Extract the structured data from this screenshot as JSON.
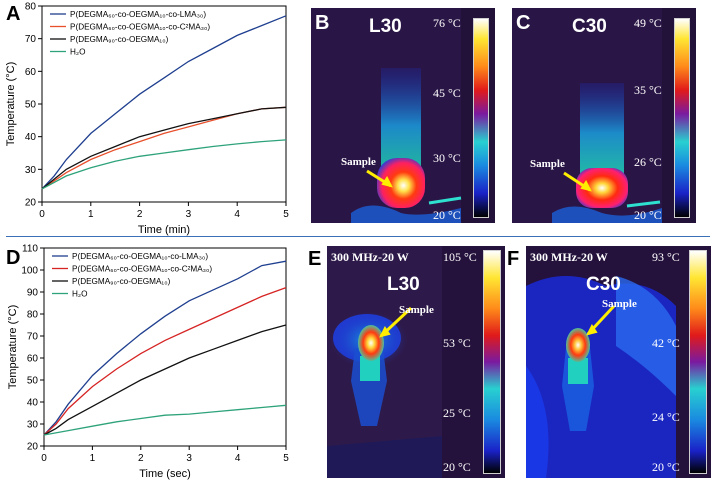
{
  "panels": {
    "A": "A",
    "B": "B",
    "C": "C",
    "D": "D",
    "E": "E",
    "F": "F"
  },
  "thermal": {
    "B": {
      "title": "L30",
      "sample": "Sample",
      "scale": [
        "76 °C",
        "45 °C",
        "30 °C",
        "20 °C"
      ]
    },
    "C": {
      "title": "C30",
      "sample": "Sample",
      "scale": [
        "49 °C",
        "35 °C",
        "26 °C",
        "20 °C"
      ]
    },
    "E": {
      "title": "L30",
      "header": "300 MHz-20 W",
      "sample": "Sample",
      "scale": [
        "105 °C",
        "53 °C",
        "25 °C",
        "20 °C"
      ]
    },
    "F": {
      "title": "C30",
      "header": "300 MHz-20 W",
      "sample": "Sample",
      "scale": [
        "93 °C",
        "42 °C",
        "24 °C",
        "20 °C"
      ]
    }
  },
  "chart_data": [
    {
      "id": "A",
      "type": "line",
      "xlabel": "Time (min)",
      "ylabel": "Temperature (°C)",
      "xlim": [
        0,
        5
      ],
      "ylim": [
        20,
        80
      ],
      "xticks": [
        0,
        1,
        2,
        3,
        4,
        5
      ],
      "yticks": [
        20,
        30,
        40,
        50,
        60,
        70,
        80
      ],
      "legend_position": "top-left",
      "series": [
        {
          "name": "P(DEGMA₆₀-co-OEGMA₁₀-co-LMA₃₀)",
          "color": "#1f3f8f",
          "x": [
            0,
            0.25,
            0.5,
            1,
            1.5,
            2,
            2.5,
            3,
            3.5,
            4,
            4.5,
            5
          ],
          "y": [
            24,
            28,
            33,
            41,
            47,
            53,
            58,
            63,
            67,
            71,
            74,
            77
          ]
        },
        {
          "name": "P(DEGMA₆₀-co-OEGMA₁₀-co-C²MA₃₀)",
          "color": "#e8502c",
          "x": [
            0,
            0.25,
            0.5,
            1,
            1.5,
            2,
            2.5,
            3,
            3.5,
            4,
            4.5,
            5
          ],
          "y": [
            24,
            26.5,
            29,
            33,
            36,
            38.5,
            41,
            43,
            45,
            47,
            48.5,
            49
          ]
        },
        {
          "name": "P(DEGMA₉₀-co-OEGMA₁₀)",
          "color": "#111111",
          "x": [
            0,
            0.25,
            0.5,
            1,
            1.5,
            2,
            2.5,
            3,
            3.5,
            4,
            4.5,
            5
          ],
          "y": [
            24,
            27,
            30,
            34,
            37,
            40,
            42,
            44,
            45.5,
            47,
            48.5,
            49
          ]
        },
        {
          "name": "H₂O",
          "color": "#2ea37a",
          "x": [
            0,
            0.25,
            0.5,
            1,
            1.5,
            2,
            2.5,
            3,
            3.5,
            4,
            4.5,
            5
          ],
          "y": [
            24,
            26,
            28,
            30.5,
            32.5,
            34,
            35,
            36,
            37,
            37.8,
            38.5,
            39
          ]
        }
      ]
    },
    {
      "id": "D",
      "type": "line",
      "xlabel": "Time (sec)",
      "ylabel": "Temperature (°C)",
      "xlim": [
        0,
        5
      ],
      "ylim": [
        20,
        110
      ],
      "xticks": [
        0,
        1,
        2,
        3,
        4,
        5
      ],
      "yticks": [
        20,
        30,
        40,
        50,
        60,
        70,
        80,
        90,
        100,
        110
      ],
      "legend_position": "top-left",
      "series": [
        {
          "name": "P(DEGMA₆₀-co-OEGMA₁₀-co-LMA₃₀)",
          "color": "#1f3f8f",
          "x": [
            0,
            0.25,
            0.5,
            1,
            1.5,
            2,
            2.5,
            3,
            3.5,
            4,
            4.5,
            5
          ],
          "y": [
            25,
            31,
            39,
            52,
            62,
            71,
            79,
            86,
            91,
            96,
            102,
            104
          ]
        },
        {
          "name": "P(DEGMA₆₀-co-OEGMA₁₀-co-C²MA₃₀)",
          "color": "#d62424",
          "x": [
            0,
            0.25,
            0.5,
            1,
            1.5,
            2,
            2.5,
            3,
            3.5,
            4,
            4.5,
            5
          ],
          "y": [
            25,
            30,
            37,
            47,
            55,
            62,
            68,
            73,
            78,
            83,
            88,
            92
          ]
        },
        {
          "name": "P(DEGMA₉₀-co-OEGMA₁₀)",
          "color": "#111111",
          "x": [
            0,
            0.25,
            0.5,
            1,
            1.5,
            2,
            2.5,
            3,
            3.5,
            4,
            4.5,
            5
          ],
          "y": [
            25,
            28,
            32,
            38,
            44,
            50,
            55,
            60,
            64,
            68,
            72,
            75
          ]
        },
        {
          "name": "H₂O",
          "color": "#2ea37a",
          "x": [
            0,
            0.5,
            1,
            1.5,
            2,
            2.5,
            3,
            3.5,
            4,
            4.5,
            5
          ],
          "y": [
            25,
            27,
            29,
            31,
            32.5,
            34,
            34.5,
            35.5,
            36.5,
            37.5,
            38.5
          ]
        }
      ]
    }
  ]
}
